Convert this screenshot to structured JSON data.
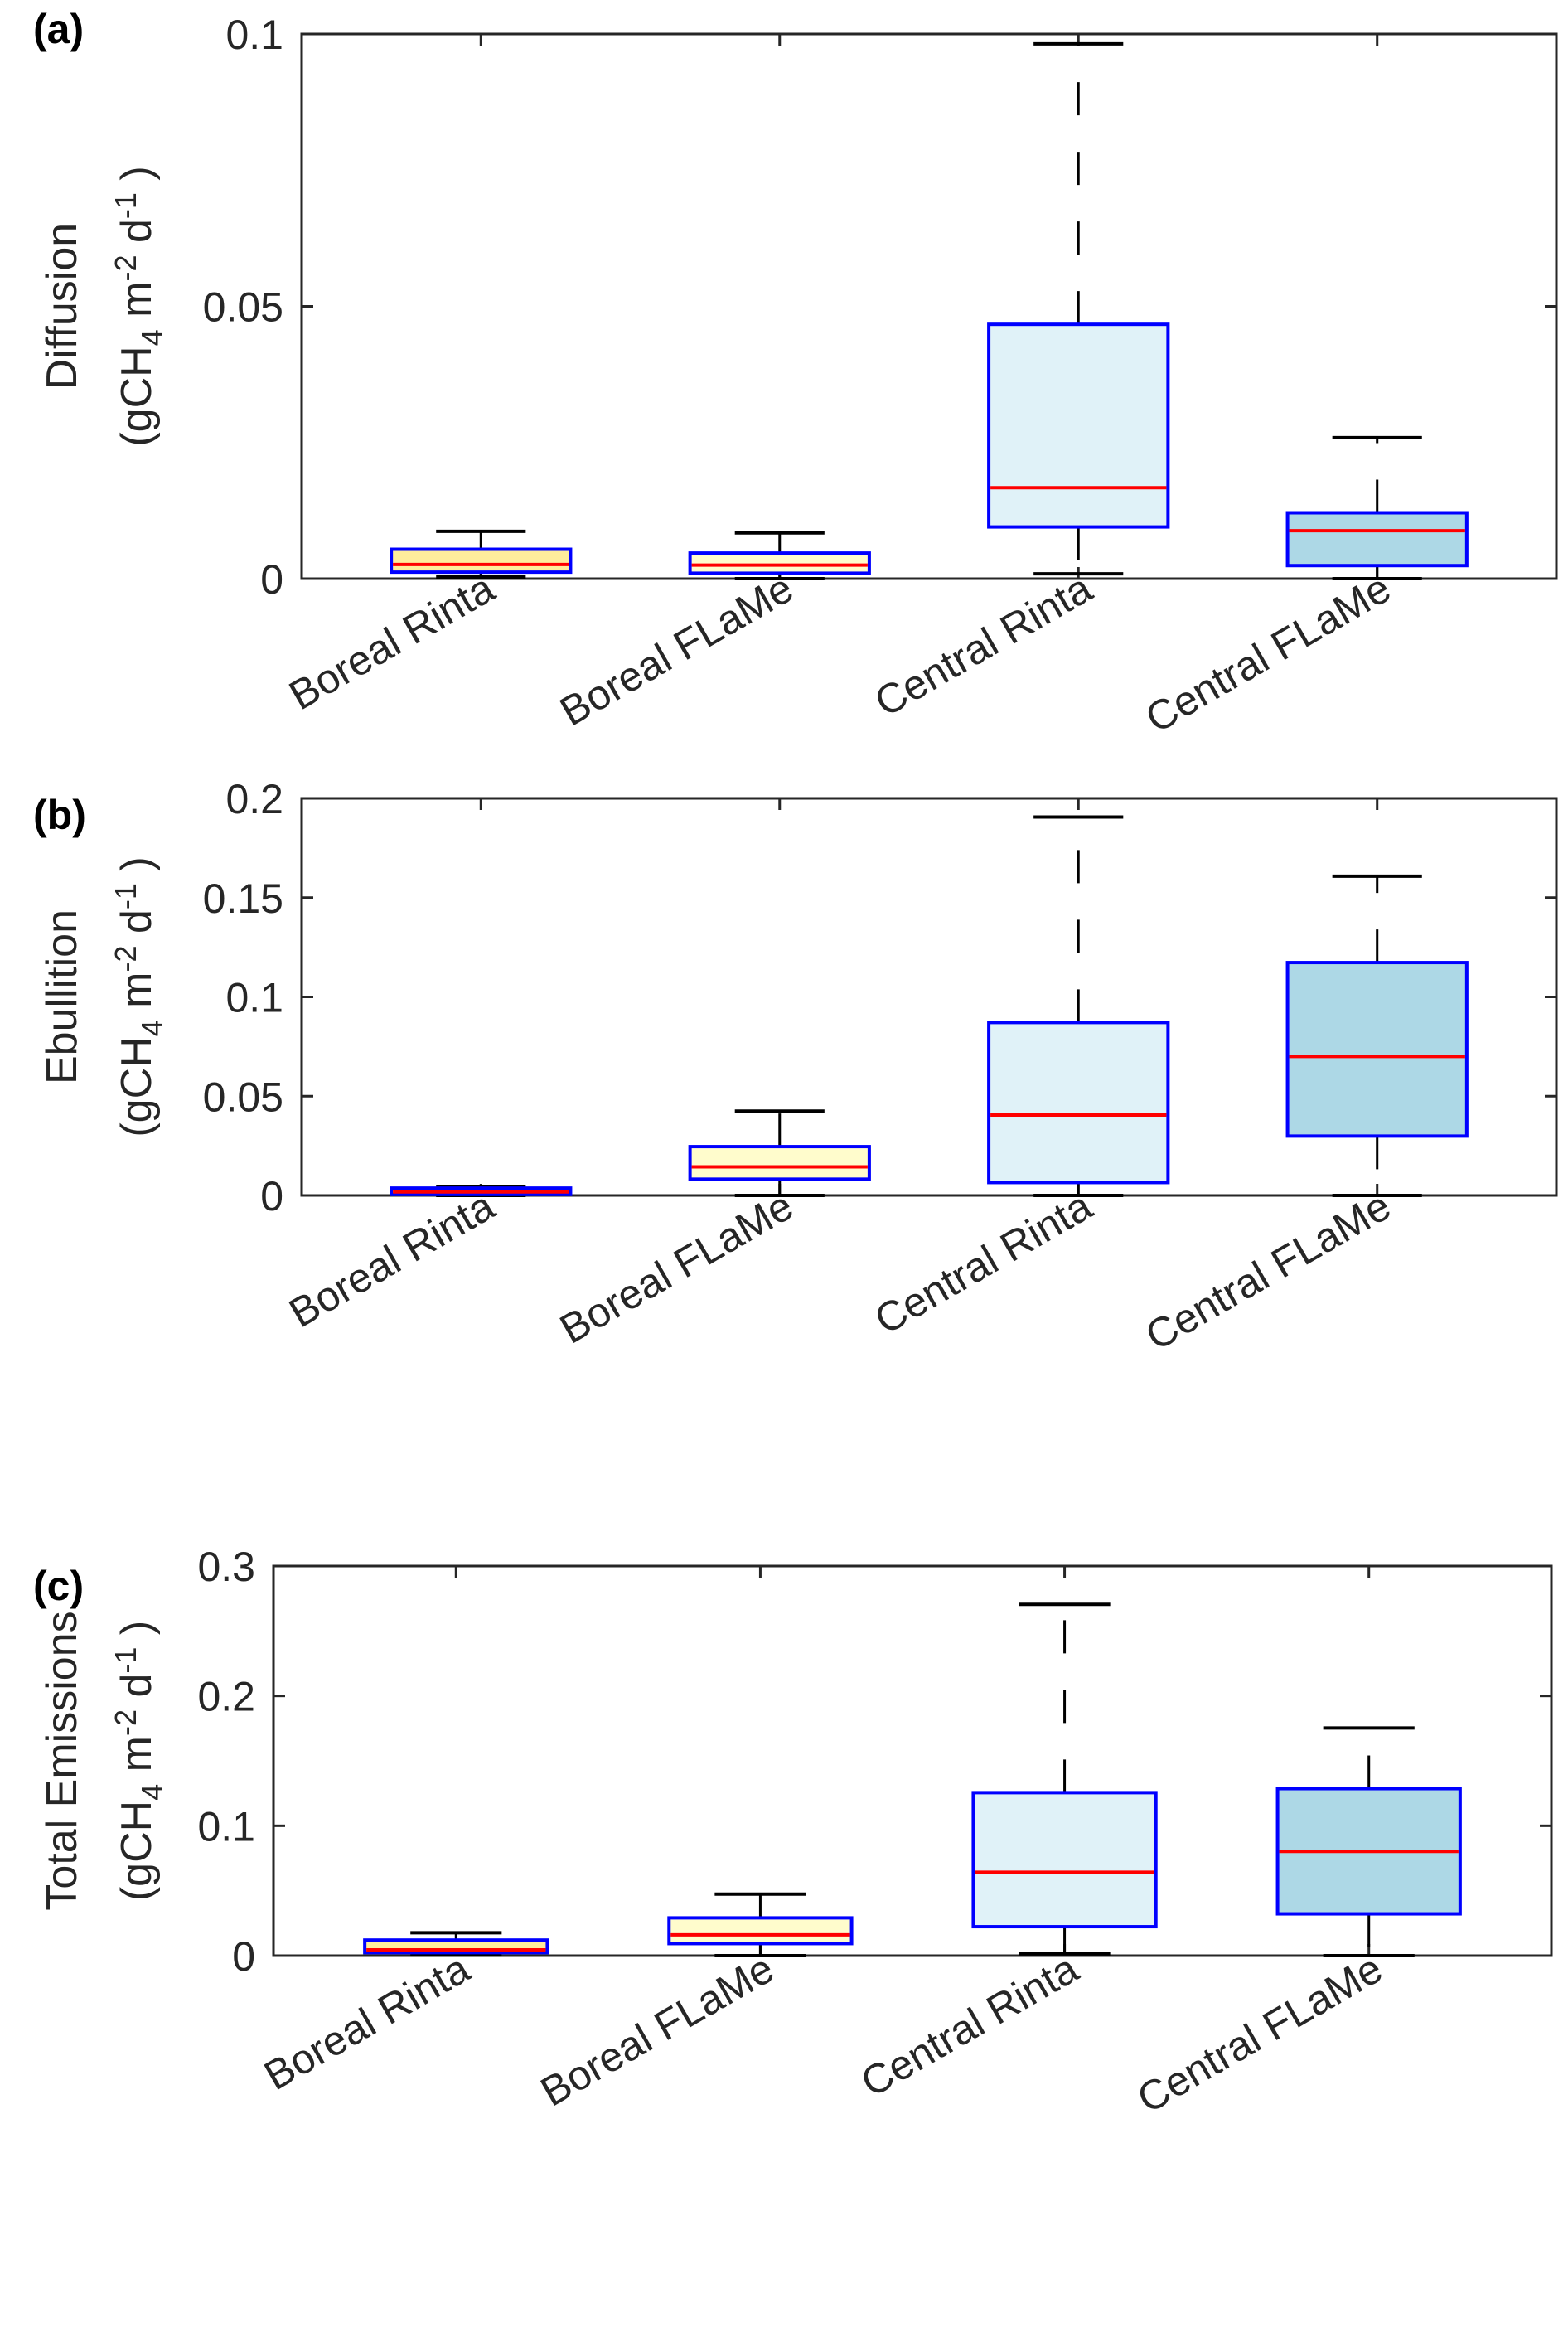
{
  "chart_data": [
    {
      "type": "box",
      "panel_label": "(a)",
      "ylabel_line1": "Diffusion",
      "ylabel_line2": "(gCH4 m-2 d-1)",
      "ylim": [
        0,
        0.1
      ],
      "yticks": [
        0,
        0.05,
        0.1
      ],
      "ytick_labels": [
        "0",
        "0.05",
        "0.1"
      ],
      "categories": [
        "Boreal Rinta",
        "Boreal FLaMe",
        "Central Rinta",
        "Central FLaMe"
      ],
      "boxes": [
        {
          "name": "Boreal Rinta",
          "lower_whisker": 0.0003,
          "q1": 0.0012,
          "median": 0.0026,
          "q3": 0.0054,
          "upper_whisker": 0.0087
        },
        {
          "name": "Boreal FLaMe",
          "lower_whisker": 0.0,
          "q1": 0.001,
          "median": 0.0025,
          "q3": 0.0047,
          "upper_whisker": 0.0084
        },
        {
          "name": "Central Rinta",
          "lower_whisker": 0.0009,
          "q1": 0.0095,
          "median": 0.0167,
          "q3": 0.0467,
          "upper_whisker": 0.0982
        },
        {
          "name": "Central FLaMe",
          "lower_whisker": 0.0,
          "q1": 0.0024,
          "median": 0.0088,
          "q3": 0.0121,
          "upper_whisker": 0.0259
        }
      ]
    },
    {
      "type": "box",
      "panel_label": "(b)",
      "ylabel_line1": "Ebullition",
      "ylabel_line2": "(gCH4 m-2 d-1)",
      "ylim": [
        0,
        0.2
      ],
      "yticks": [
        0,
        0.05,
        0.1,
        0.15,
        0.2
      ],
      "ytick_labels": [
        "0",
        "0.05",
        "0.1",
        "0.15",
        "0.2"
      ],
      "categories": [
        "Boreal Rinta",
        "Boreal FLaMe",
        "Central Rinta",
        "Central FLaMe"
      ],
      "boxes": [
        {
          "name": "Boreal Rinta",
          "lower_whisker": 0.0,
          "q1": 0.0005,
          "median": 0.0018,
          "q3": 0.0037,
          "upper_whisker": 0.0042
        },
        {
          "name": "Boreal FLaMe",
          "lower_whisker": 0.0,
          "q1": 0.0082,
          "median": 0.0144,
          "q3": 0.0246,
          "upper_whisker": 0.0425
        },
        {
          "name": "Central Rinta",
          "lower_whisker": 0.0,
          "q1": 0.0065,
          "median": 0.0405,
          "q3": 0.0871,
          "upper_whisker": 0.1906
        },
        {
          "name": "Central FLaMe",
          "lower_whisker": 0.0,
          "q1": 0.0299,
          "median": 0.07,
          "q3": 0.1173,
          "upper_whisker": 0.1608
        }
      ]
    },
    {
      "type": "box",
      "panel_label": "(c)",
      "ylabel_line1": "Total Emissions",
      "ylabel_line2": "(gCH4 m-2 d-1)",
      "ylim": [
        0,
        0.3
      ],
      "yticks": [
        0,
        0.1,
        0.2,
        0.3
      ],
      "ytick_labels": [
        "0",
        "0.1",
        "0.2",
        "0.3"
      ],
      "categories": [
        "Boreal Rinta",
        "Boreal FLaMe",
        "Central Rinta",
        "Central FLaMe"
      ],
      "boxes": [
        {
          "name": "Boreal Rinta",
          "lower_whisker": 0.0005,
          "q1": 0.0023,
          "median": 0.0045,
          "q3": 0.012,
          "upper_whisker": 0.0176
        },
        {
          "name": "Boreal FLaMe",
          "lower_whisker": 0.0,
          "q1": 0.0093,
          "median": 0.016,
          "q3": 0.0291,
          "upper_whisker": 0.0474
        },
        {
          "name": "Central Rinta",
          "lower_whisker": 0.0014,
          "q1": 0.0223,
          "median": 0.0642,
          "q3": 0.1255,
          "upper_whisker": 0.2705
        },
        {
          "name": "Central FLaMe",
          "lower_whisker": 0.0,
          "q1": 0.0322,
          "median": 0.0803,
          "q3": 0.1286,
          "upper_whisker": 0.1753
        }
      ]
    }
  ],
  "colors": {
    "box_edge": "#0000FF",
    "median": "#FF0000",
    "whisker": "#000000",
    "axis": "#262626",
    "fills": [
      "#FFEC9C",
      "#FFFCCC",
      "#E0F2F8",
      "#ADD8E6"
    ]
  },
  "unit_parts": {
    "open": "(gCH",
    "sub4": "4",
    "m": " m",
    "sup_m2": "-2",
    "d": " d",
    "sup_d1": "-1",
    "close": " )"
  }
}
